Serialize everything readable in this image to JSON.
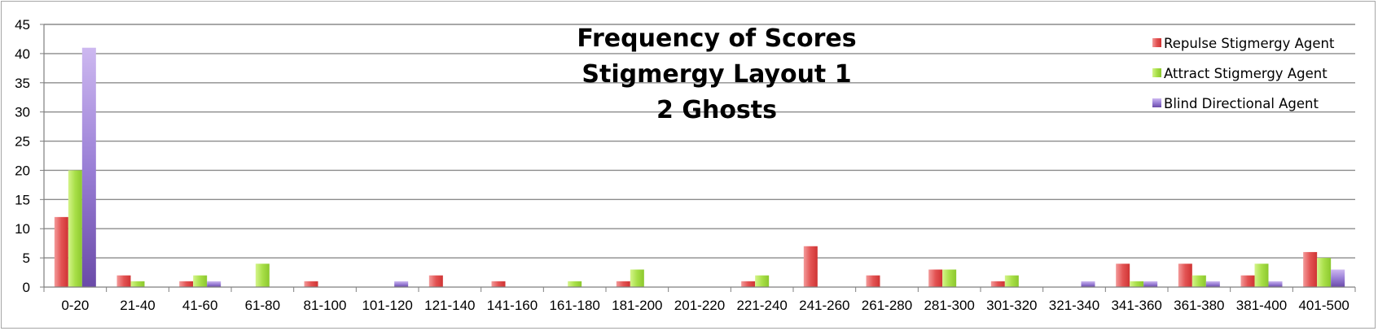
{
  "chart_data": {
    "type": "bar",
    "title_lines": [
      "Frequency of Scores",
      "Stigmergy Layout 1",
      "2 Ghosts"
    ],
    "categories": [
      "0-20",
      "21-40",
      "41-60",
      "61-80",
      "81-100",
      "101-120",
      "121-140",
      "141-160",
      "161-180",
      "181-200",
      "201-220",
      "221-240",
      "241-260",
      "261-280",
      "281-300",
      "301-320",
      "321-340",
      "341-360",
      "361-380",
      "381-400",
      "401-500"
    ],
    "series": [
      {
        "name": "Repulse Stigmergy Agent",
        "color": "#e34a4a",
        "values": [
          12,
          2,
          1,
          0,
          1,
          0,
          2,
          1,
          0,
          1,
          0,
          1,
          7,
          2,
          3,
          1,
          0,
          4,
          4,
          2,
          6
        ]
      },
      {
        "name": "Attract Stigmergy Agent",
        "color": "#9ed53c",
        "values": [
          20,
          1,
          2,
          4,
          0,
          0,
          0,
          0,
          1,
          3,
          0,
          2,
          0,
          0,
          3,
          2,
          0,
          1,
          2,
          4,
          5
        ]
      },
      {
        "name": "Blind Directional Agent",
        "color": "#7b5bb8",
        "values": [
          41,
          0,
          1,
          0,
          0,
          1,
          0,
          0,
          0,
          0,
          0,
          0,
          0,
          0,
          0,
          0,
          1,
          1,
          1,
          1,
          3
        ]
      }
    ],
    "ylim": [
      0,
      45
    ],
    "yticks": [
      0,
      5,
      10,
      15,
      20,
      25,
      30,
      35,
      40,
      45
    ],
    "grid": true,
    "legend_position": "top-right",
    "xlabel": "",
    "ylabel": ""
  }
}
